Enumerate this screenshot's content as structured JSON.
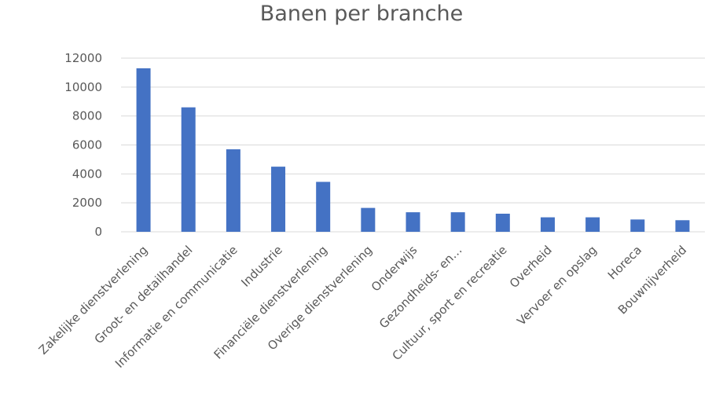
{
  "chart_data": {
    "type": "bar",
    "title": "Banen per branche",
    "xlabel": "",
    "ylabel": "",
    "ylim": [
      0,
      12000
    ],
    "yticks": [
      0,
      2000,
      4000,
      6000,
      8000,
      10000,
      12000
    ],
    "grid": true,
    "legend": "none",
    "bar_color": "#4472C4",
    "grid_color": "#D9D9D9",
    "categories": [
      "Zakelijke dienstverlening",
      "Groot- en detailhandel",
      "Informatie en communicatie",
      "Industrie",
      "Financiële dienstverlening",
      "Overige dienstverlening",
      "Onderwijs",
      "Gezondheids- en…",
      "Cultuur, sport en recreatie",
      "Overheid",
      "Vervoer en opslag",
      "Horeca",
      "Bouwnijverheid"
    ],
    "values": [
      11300,
      8600,
      5700,
      4500,
      3450,
      1650,
      1350,
      1350,
      1250,
      1000,
      1000,
      850,
      800
    ]
  }
}
